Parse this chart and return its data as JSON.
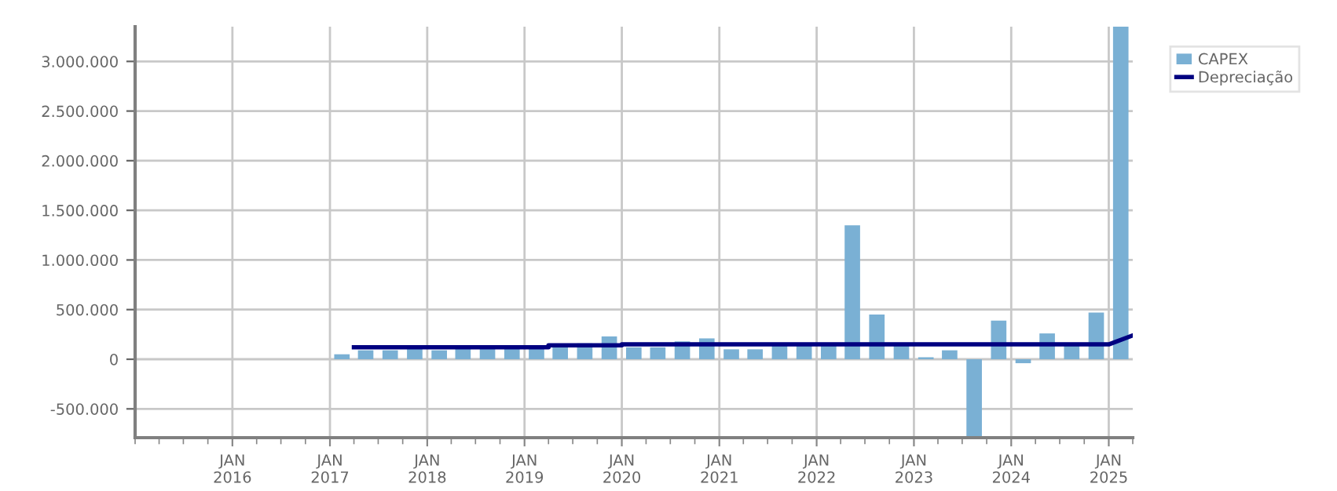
{
  "chart_data": {
    "type": "bar",
    "x": [
      "2017-02-15",
      "2017-05-15",
      "2017-08-15",
      "2017-11-15",
      "2018-02-15",
      "2018-05-15",
      "2018-08-15",
      "2018-11-15",
      "2019-02-15",
      "2019-05-15",
      "2019-08-15",
      "2019-11-15",
      "2020-02-15",
      "2020-05-15",
      "2020-08-15",
      "2020-11-15",
      "2021-02-15",
      "2021-05-15",
      "2021-08-15",
      "2021-11-15",
      "2022-02-15",
      "2022-05-15",
      "2022-08-15",
      "2022-11-15",
      "2023-02-15",
      "2023-05-15",
      "2023-08-15",
      "2023-11-15",
      "2024-02-15",
      "2024-05-15",
      "2024-08-15",
      "2024-11-15",
      "2025-02-15"
    ],
    "series": [
      {
        "name": "CAPEX",
        "color": "#7ab0d4",
        "values": [
          50000,
          90000,
          90000,
          120000,
          90000,
          120000,
          120000,
          140000,
          120000,
          120000,
          160000,
          230000,
          120000,
          120000,
          180000,
          210000,
          100000,
          100000,
          140000,
          140000,
          140000,
          1350000,
          450000,
          140000,
          20000,
          90000,
          -790000,
          390000,
          -40000,
          260000,
          140000,
          470000,
          3350000
        ]
      },
      {
        "name": "Depreciação",
        "type": "line",
        "color": "#000080",
        "x": [
          "2017-04-01",
          "2019-04-01",
          "2019-04-01",
          "2020-01-01",
          "2020-01-01",
          "2025-01-01",
          "2025-04-01"
        ],
        "values": [
          120000,
          120000,
          140000,
          140000,
          150000,
          150000,
          240000
        ]
      }
    ],
    "xlim": [
      "2015-01-01",
      "2025-04-01"
    ],
    "xticks": [
      {
        "value": "2016-01-01",
        "label": "JAN\n2016"
      },
      {
        "value": "2017-01-01",
        "label": "JAN\n2017"
      },
      {
        "value": "2018-01-01",
        "label": "JAN\n2018"
      },
      {
        "value": "2019-01-01",
        "label": "JAN\n2019"
      },
      {
        "value": "2020-01-01",
        "label": "JAN\n2020"
      },
      {
        "value": "2021-01-01",
        "label": "JAN\n2021"
      },
      {
        "value": "2022-01-01",
        "label": "JAN\n2022"
      },
      {
        "value": "2023-01-01",
        "label": "JAN\n2023"
      },
      {
        "value": "2024-01-01",
        "label": "JAN\n2024"
      },
      {
        "value": "2025-01-01",
        "label": "JAN\n2025"
      }
    ],
    "ylim": [
      -790000,
      3350000
    ],
    "yticks": [
      {
        "value": -500000,
        "label": "-500.000"
      },
      0,
      {
        "value": 500000,
        "label": "500.000"
      },
      {
        "value": 1000000,
        "label": "1.000.000"
      },
      {
        "value": 1500000,
        "label": "1.500.000"
      },
      {
        "value": 2000000,
        "label": "2.000.000"
      },
      {
        "value": 2500000,
        "label": "2.500.000"
      },
      {
        "value": 3000000,
        "label": "3.000.000"
      }
    ],
    "grid": true,
    "legend": "right"
  }
}
